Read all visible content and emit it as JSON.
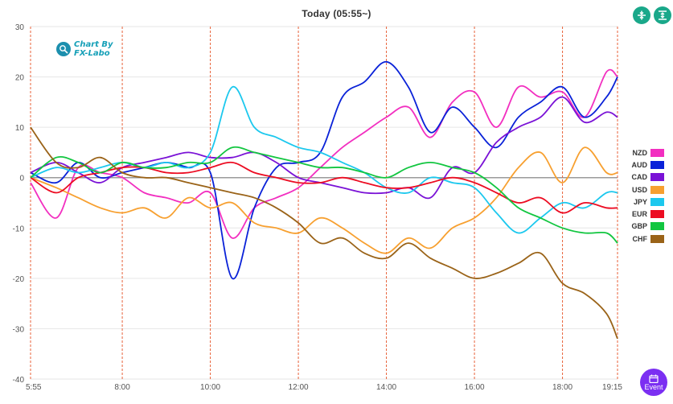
{
  "header": {
    "title": "Today  (05:55~)",
    "event_label": "Event",
    "logo_line1": "Chart By",
    "logo_line2": "FX-Labo"
  },
  "chart_data": {
    "type": "line",
    "title": "Today  (05:55~)",
    "xlabel": "",
    "ylabel": "",
    "ylim": [
      -40,
      30
    ],
    "yticks": [
      30,
      20,
      10,
      0,
      -10,
      -20,
      -30,
      -40
    ],
    "xlim": [
      "5:55",
      "19:15"
    ],
    "xtick_labels": [
      "5:55",
      "8:00",
      "10:00",
      "12:00",
      "14:00",
      "16:00",
      "18:00",
      "19:15"
    ],
    "x_hours": [
      5.9167,
      6.5,
      7,
      7.5,
      8,
      8.5,
      9,
      9.5,
      10,
      10.5,
      11,
      11.5,
      12,
      12.5,
      13,
      13.5,
      14,
      14.5,
      15,
      15.5,
      16,
      16.5,
      17,
      17.5,
      18,
      18.5,
      19,
      19.25
    ],
    "grid": true,
    "legend_position": "right",
    "series": [
      {
        "name": "NZD",
        "color": "#f22fc0",
        "values": [
          -1,
          -8,
          2,
          1,
          0,
          -3,
          -4,
          -5,
          -3,
          -12,
          -6,
          -4,
          -2,
          2,
          6,
          9,
          12,
          14,
          8,
          15,
          17,
          10,
          18,
          16,
          17,
          12,
          21,
          20
        ]
      },
      {
        "name": "AUD",
        "color": "#0a22d8",
        "values": [
          1,
          -1,
          3,
          0,
          1,
          2,
          3,
          2,
          1,
          -20,
          -6,
          2,
          3,
          5,
          16,
          19,
          23,
          18,
          9,
          14,
          10,
          6,
          12,
          15,
          18,
          12,
          16,
          20
        ]
      },
      {
        "name": "CAD",
        "color": "#7a12d6",
        "values": [
          1,
          3,
          1,
          -1,
          2,
          3,
          4,
          5,
          4,
          4,
          5,
          3,
          0,
          -1,
          -2,
          -3,
          -3,
          -2,
          -4,
          2,
          1,
          7,
          10,
          12,
          16,
          11,
          13,
          12
        ]
      },
      {
        "name": "USD",
        "color": "#f7a030",
        "values": [
          0,
          -2,
          -4,
          -6,
          -7,
          -6,
          -8,
          -4,
          -6,
          -5,
          -9,
          -10,
          -11,
          -8,
          -10,
          -13,
          -15,
          -12,
          -14,
          -10,
          -8,
          -4,
          2,
          5,
          -1,
          6,
          1,
          1
        ]
      },
      {
        "name": "JPY",
        "color": "#1cc8ee",
        "values": [
          0,
          2,
          1,
          2,
          3,
          2,
          3,
          2,
          5,
          18,
          10,
          8,
          6,
          5,
          3,
          1,
          -2,
          -3,
          0,
          -1,
          -2,
          -7,
          -11,
          -8,
          -5,
          -6,
          -3,
          -3
        ]
      },
      {
        "name": "EUR",
        "color": "#ec0c22",
        "values": [
          0,
          -3,
          0,
          1,
          2,
          2,
          1,
          1,
          2,
          3,
          1,
          0,
          -1,
          -1,
          0,
          -1,
          -2,
          -2,
          -1,
          0,
          -1,
          -3,
          -5,
          -4,
          -7,
          -5,
          -6,
          -6
        ]
      },
      {
        "name": "GBP",
        "color": "#12c640",
        "values": [
          0,
          4,
          3,
          1,
          3,
          2,
          2,
          3,
          3,
          6,
          5,
          4,
          3,
          2,
          2,
          1,
          0,
          2,
          3,
          2,
          1,
          -2,
          -6,
          -8,
          -10,
          -11,
          -11,
          -13
        ]
      },
      {
        "name": "CHF",
        "color": "#9a6318",
        "values": [
          10,
          3,
          2,
          4,
          1,
          0,
          0,
          -1,
          -2,
          -3,
          -4,
          -6,
          -9,
          -13,
          -12,
          -15,
          -16,
          -13,
          -16,
          -18,
          -20,
          -19,
          -17,
          -15,
          -21,
          -23,
          -27,
          -32
        ]
      }
    ]
  }
}
